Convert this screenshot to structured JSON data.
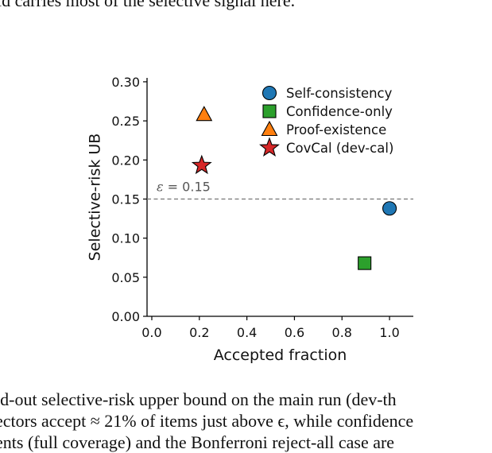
{
  "page": {
    "top_fragment": "ld carries most of the selective signal here.",
    "caption_lines": [
      "ld-out selective-risk upper bound on the main run (dev-th",
      "ectors accept ≈ 21% of items just above ϵ, while confidence",
      "ents (full coverage) and the Bonferroni reject-all case are"
    ]
  },
  "chart_data": {
    "type": "scatter",
    "xlabel": "Accepted fraction",
    "ylabel": "Selective-risk UB",
    "xlim": [
      -0.02,
      1.1
    ],
    "ylim": [
      0.0,
      0.305
    ],
    "xticks": [
      "0.0",
      "0.2",
      "0.4",
      "0.6",
      "0.8",
      "1.0"
    ],
    "xtick_values": [
      0.0,
      0.2,
      0.4,
      0.6,
      0.8,
      1.0
    ],
    "yticks": [
      "0.00",
      "0.05",
      "0.10",
      "0.15",
      "0.20",
      "0.25",
      "0.30"
    ],
    "ytick_values": [
      0.0,
      0.05,
      0.1,
      0.15,
      0.2,
      0.25,
      0.3
    ],
    "grid": false,
    "legend_position": "top-right",
    "threshold": {
      "value": 0.15,
      "label_symbol": "ε",
      "label_value": " = 0.15",
      "color": "#7f7f7f",
      "style": "dashed"
    },
    "series": [
      {
        "name": "Self-consistency",
        "marker": "circle",
        "color": "#1f77b4",
        "x": [
          1.0
        ],
        "y": [
          0.138
        ]
      },
      {
        "name": "Confidence-only",
        "marker": "square",
        "color": "#2ca02c",
        "x": [
          0.895
        ],
        "y": [
          0.068
        ]
      },
      {
        "name": "Proof-existence",
        "marker": "triangle",
        "color": "#ff7f0e",
        "x": [
          0.22
        ],
        "y": [
          0.258
        ]
      },
      {
        "name": "CovCal (dev-cal)",
        "marker": "star",
        "color": "#d62728",
        "x": [
          0.21
        ],
        "y": [
          0.193
        ]
      }
    ]
  }
}
